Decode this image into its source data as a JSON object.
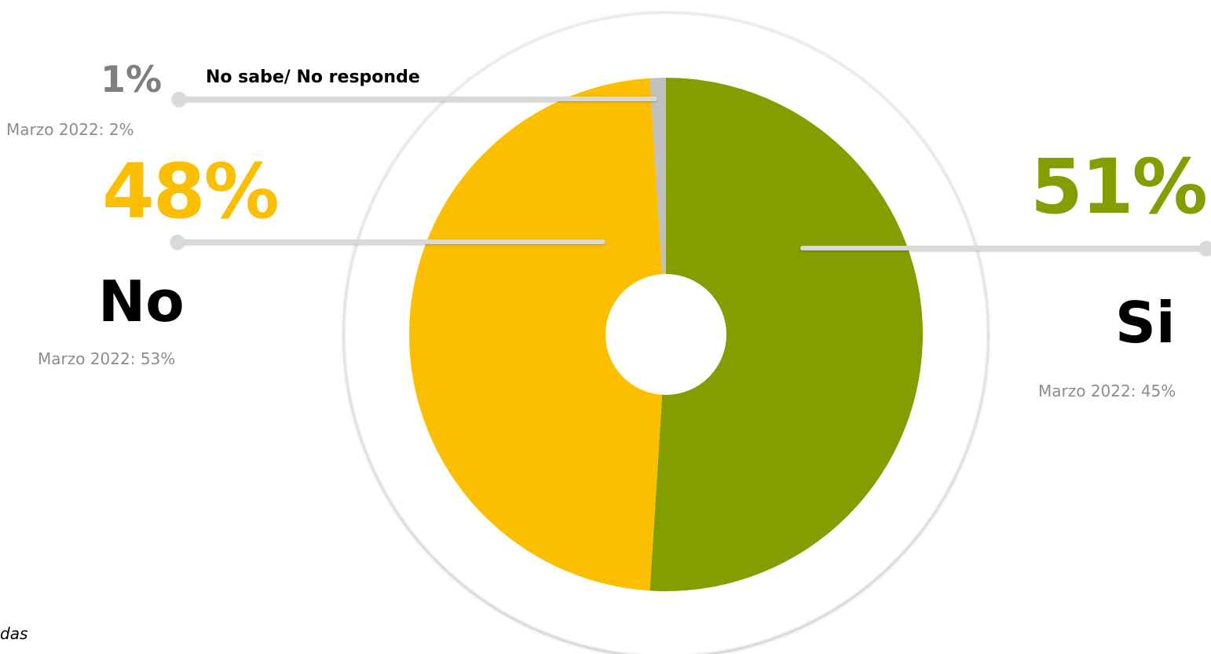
{
  "chart_data": {
    "type": "pie",
    "slices": [
      {
        "label": "Si",
        "value": 51,
        "value_label": "51%",
        "previous": "Marzo 2022: 45%",
        "color": "#829e00"
      },
      {
        "label": "No",
        "value": 48,
        "value_label": "48%",
        "previous": "Marzo 2022: 53%",
        "color": "#fcbf00"
      },
      {
        "label": "No sabe/ No responde",
        "value": 1,
        "value_label": "1%",
        "previous": "Marzo 2022: 2%",
        "color": "#c0c0c0"
      }
    ]
  },
  "footer_fragment": "das"
}
